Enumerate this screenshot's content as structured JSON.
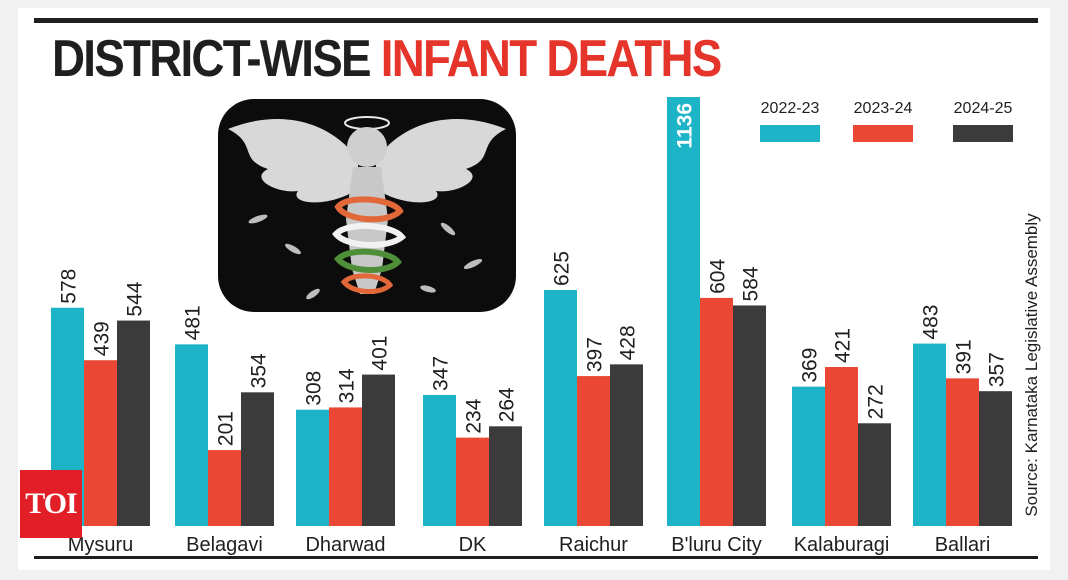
{
  "title": {
    "part1": "DISTRICT-WISE",
    "part2": "INFANT DEATHS"
  },
  "source": "Source: Karnataka Legislative Assembly",
  "logo": {
    "text": "TOI"
  },
  "colors": {
    "s2022": "#1db4c8",
    "s2023": "#ea4735",
    "s2024": "#3b3b3b",
    "title_accent": "#e5352b",
    "logo_bg": "#e21f26"
  },
  "illustration": {
    "icon": "angel-wings-figure-icon"
  },
  "chart_data": {
    "type": "bar",
    "title": "DISTRICT-WISE INFANT DEATHS",
    "categories": [
      "Mysuru",
      "Belagavi",
      "Dharwad",
      "DK",
      "Raichur",
      "B'luru City",
      "Kalaburagi",
      "Ballari"
    ],
    "series": [
      {
        "name": "2022-23",
        "values": [
          578,
          481,
          308,
          347,
          625,
          1136,
          369,
          483
        ]
      },
      {
        "name": "2023-24",
        "values": [
          439,
          201,
          314,
          234,
          397,
          604,
          421,
          391
        ]
      },
      {
        "name": "2024-25",
        "values": [
          544,
          354,
          401,
          264,
          428,
          584,
          272,
          357
        ]
      }
    ],
    "xlabel": "",
    "ylabel": "",
    "ylim": [
      0,
      1136
    ],
    "grid": false,
    "legend": "top-right"
  }
}
